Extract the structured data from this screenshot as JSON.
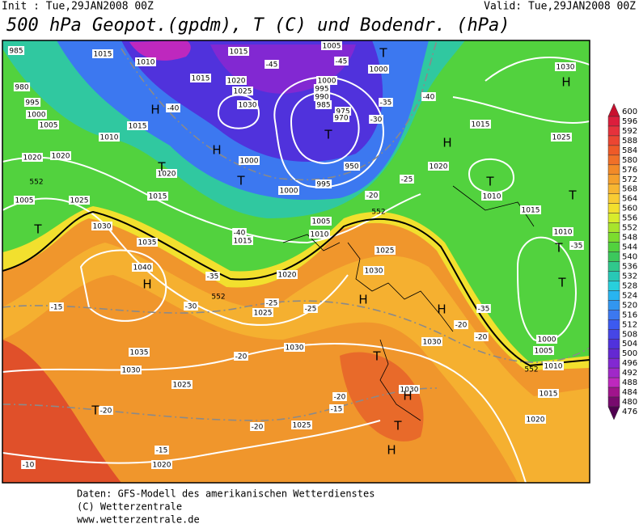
{
  "header": {
    "init": "Init : Tue,29JAN2008 00Z",
    "valid": "Valid: Tue,29JAN2008 00Z",
    "title": "500 hPa Geopot.(gpdm), T (C) und Bodendr. (hPa)"
  },
  "colorbar": {
    "levels": [
      600,
      596,
      592,
      588,
      584,
      580,
      576,
      572,
      568,
      564,
      560,
      556,
      552,
      548,
      544,
      540,
      536,
      532,
      528,
      524,
      520,
      516,
      512,
      508,
      504,
      500,
      496,
      492,
      488,
      484,
      480,
      476
    ],
    "colors": [
      "#c8102e",
      "#dc1e3c",
      "#e6323c",
      "#eb4632",
      "#ee5a28",
      "#f07028",
      "#f28a28",
      "#f5a02c",
      "#f7b632",
      "#f8cc34",
      "#f2e02e",
      "#d8ec2c",
      "#a8e42c",
      "#7cdc2e",
      "#52d23e",
      "#3cc85c",
      "#30c88c",
      "#28c8b6",
      "#28d0dc",
      "#28b4f0",
      "#3296f0",
      "#3c78f0",
      "#3c5af0",
      "#4646e6",
      "#5032dc",
      "#6428d2",
      "#8228d2",
      "#a028c8",
      "#be28be",
      "#a0148c",
      "#780a6e",
      "#500050"
    ]
  },
  "map": {
    "markers": [
      "H",
      "H",
      "H",
      "H",
      "H",
      "H",
      "H",
      "H",
      "H",
      "T",
      "T",
      "T",
      "T",
      "T",
      "T",
      "T",
      "T",
      "T",
      "T",
      "T",
      "T"
    ],
    "pressure_labels": [
      "985",
      "980",
      "995",
      "1000",
      "1005",
      "1010",
      "1015",
      "1010",
      "1015",
      "1005",
      "1000",
      "1020",
      "1015",
      "1015",
      "1020",
      "1025",
      "1030",
      "1000",
      "995",
      "990",
      "985",
      "975",
      "970",
      "1020",
      "1015",
      "1000",
      "950",
      "995",
      "1000",
      "1005",
      "1010",
      "1015",
      "1020",
      "1025",
      "1030",
      "1025",
      "1035",
      "1040",
      "1030",
      "1025",
      "1020",
      "1030",
      "1030",
      "1035",
      "1030",
      "1025",
      "1025",
      "1020",
      "1030",
      "1015",
      "1025",
      "1030",
      "1010",
      "1015",
      "1010",
      "1000",
      "1005",
      "1010",
      "1015",
      "1020",
      "1020",
      "1005"
    ],
    "temperature_labels": [
      "-45",
      "-45",
      "-40",
      "-35",
      "-40",
      "-30",
      "-25",
      "-20",
      "-40",
      "-35",
      "-30",
      "-25",
      "-20",
      "-20",
      "-15",
      "-20",
      "-20",
      "-15",
      "-10",
      "-15",
      "-20",
      "-20",
      "-35",
      "-35",
      "-25"
    ],
    "height_labels": [
      "552",
      "552",
      "552",
      "552"
    ]
  },
  "footer": [
    "Daten: GFS-Modell des amerikanischen Wetterdienstes",
    "(C) Wetterzentrale",
    "www.wetterzentrale.de"
  ]
}
